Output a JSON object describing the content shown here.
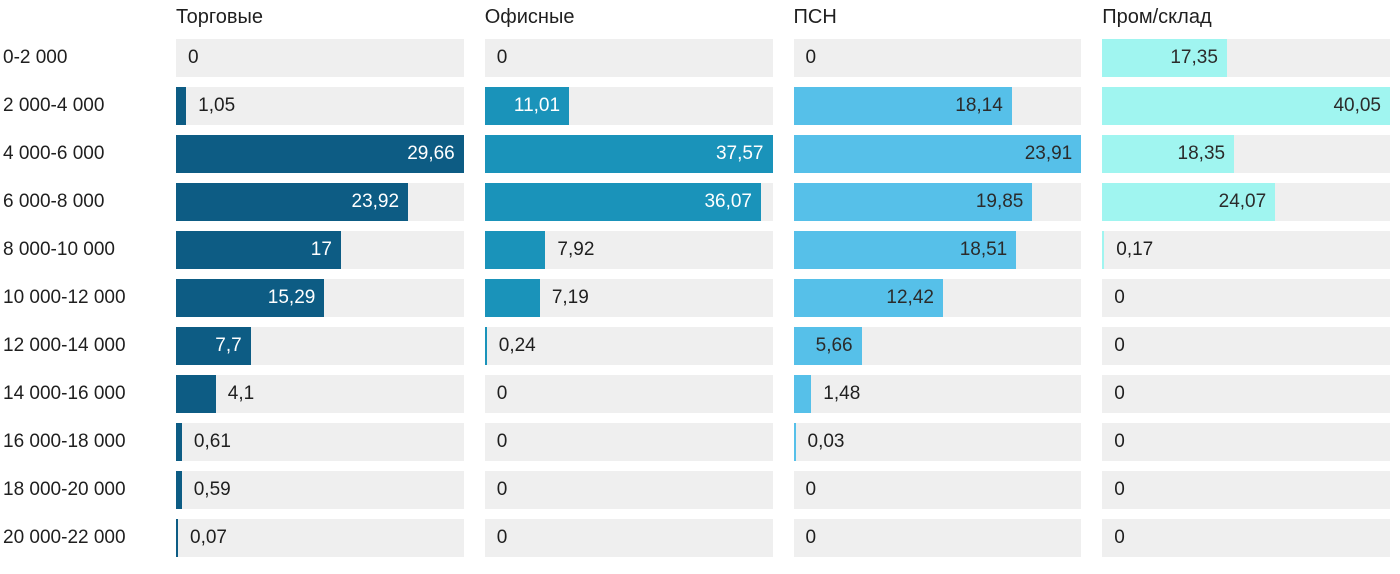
{
  "chart_data": {
    "type": "bar",
    "orientation": "horizontal",
    "title": "",
    "xlabel": "",
    "ylabel": "",
    "scaling": "each series panel scaled independently to its own max value (max bar fills full column width)",
    "legend_position": "column headers on top",
    "grid": false,
    "track_color": "#efefef",
    "text_color": "#1f1f1f",
    "value_decimal_separator": ",",
    "categories": [
      "0-2 000",
      "2 000-4 000",
      "4 000-6 000",
      "6 000-8 000",
      "8 000-10 000",
      "10 000-12 000",
      "12 000-14 000",
      "14 000-16 000",
      "16 000-18 000",
      "18 000-20 000",
      "20 000-22 000"
    ],
    "series": [
      {
        "name": "Торговые",
        "color": "#0d5c84",
        "label_color_inside": "#ffffff",
        "max": 29.66,
        "values": [
          0,
          1.05,
          29.66,
          23.92,
          17,
          15.29,
          7.7,
          4.1,
          0.61,
          0.59,
          0.07
        ]
      },
      {
        "name": "Офисные",
        "color": "#1a93ba",
        "label_color_inside": "#ffffff",
        "max": 37.57,
        "values": [
          0,
          11.01,
          37.57,
          36.07,
          7.92,
          7.19,
          0.24,
          0,
          0,
          0,
          0
        ]
      },
      {
        "name": "ПСН",
        "color": "#56c0e9",
        "label_color_inside": "#2b2b2b",
        "max": 23.91,
        "values": [
          0,
          18.14,
          23.91,
          19.85,
          18.51,
          12.42,
          5.66,
          1.48,
          0.03,
          0,
          0
        ]
      },
      {
        "name": "Пром/склад",
        "color": "#a0f5f0",
        "label_color_inside": "#2b2b2b",
        "max": 40.05,
        "values": [
          17.35,
          40.05,
          18.35,
          24.07,
          0.17,
          0,
          0,
          0,
          0,
          0,
          0
        ]
      }
    ]
  }
}
